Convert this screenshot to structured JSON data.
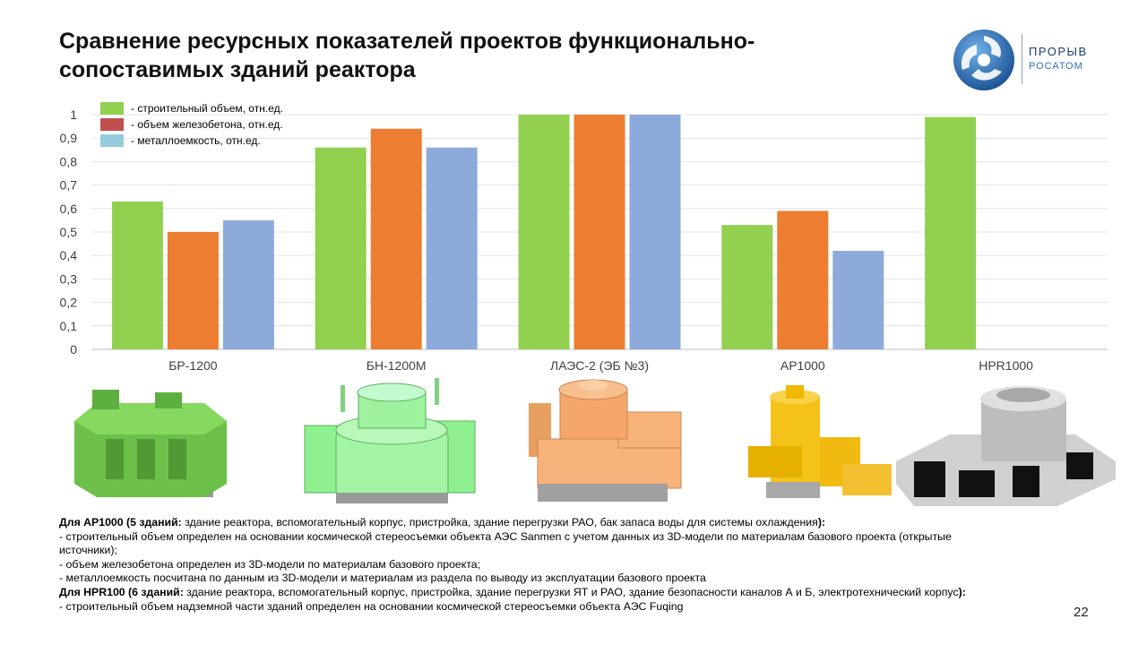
{
  "slide": {
    "title": "Сравнение ресурсных показателей проектов функционально-сопоставимых зданий реактора",
    "page_number": "22",
    "logo": {
      "line1": "ПРОРЫВ",
      "line2": "РОСАТОМ"
    }
  },
  "legend": [
    {
      "label": "- строительный объем, отн.ед.",
      "color": "#92d050"
    },
    {
      "label": "- объем железобетона, отн.ед.",
      "color": "#c0504d"
    },
    {
      "label": "- металлоемкость, отн.ед.",
      "color": "#93cddd"
    }
  ],
  "chart_data": {
    "type": "bar",
    "categories": [
      "БР-1200",
      "БН-1200М",
      "ЛАЭС-2 (ЭБ №3)",
      "АР1000",
      "HPR1000"
    ],
    "series": [
      {
        "name": "строительный объем, отн.ед.",
        "color": "#92d050",
        "values": [
          0.63,
          0.86,
          1.0,
          0.53,
          0.99
        ]
      },
      {
        "name": "объем железобетона, отн.ед.",
        "color": "#ed7d31",
        "values": [
          0.5,
          0.94,
          1.0,
          0.59,
          null
        ]
      },
      {
        "name": "металлоемкость, отн.ед.",
        "color": "#8eaadb",
        "values": [
          0.55,
          0.86,
          1.0,
          0.42,
          null
        ]
      }
    ],
    "yticks": [
      "0",
      "0,1",
      "0,2",
      "0,3",
      "0,4",
      "0,5",
      "0,6",
      "0,7",
      "0,8",
      "0,9",
      "1"
    ],
    "ylim": [
      0,
      1
    ],
    "grid": true,
    "legend_position": "top-left"
  },
  "models": [
    {
      "name": "br1200-model",
      "color": "#6cc04a"
    },
    {
      "name": "bn1200m-model",
      "color": "#8ff08f"
    },
    {
      "name": "laes2-model",
      "color": "#f7b27a"
    },
    {
      "name": "ap1000-model",
      "color": "#f5c21a"
    },
    {
      "name": "hpr1000-model",
      "color": "#c8c8c8"
    }
  ],
  "notes": {
    "ap1000_heading": "Для АР1000 (5 зданий:",
    "ap1000_heading_rest": " здание реактора, вспомогательный корпус, пристройка, здание перегрузки РАО, бак запаса воды для системы охлаждения",
    "ap1000_heading_end": "):",
    "ap1000_line1": "- строительный объем определен на основании космической стереосъемки объекта АЭС Sanmen с учетом данных из 3D-модели по материалам базового проекта (открытые источники);",
    "ap1000_line2": "- объем железобетона определен из 3D-модели по материалам базового проекта;",
    "ap1000_line3": "- металлоемкость посчитана по данным из 3D-модели и материалам из раздела по выводу из эксплуатации базового проекта",
    "hpr_heading": "Для HPR100 (6 зданий:",
    "hpr_heading_rest": " здание реактора, вспомогательный корпус, пристройка, здание перегрузки ЯТ и РАО, здание безопасности каналов А и Б, электротехнический корпус",
    "hpr_heading_end": "):",
    "hpr_line1": "- строительный объем надземной части зданий определен на основании космической стереосъемки объекта АЭС Fuqing"
  }
}
